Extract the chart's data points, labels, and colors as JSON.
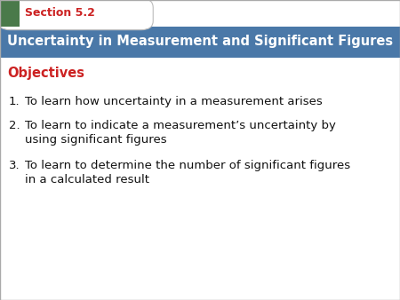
{
  "section_label": "Section 5.2",
  "title": "Uncertainty in Measurement and Significant Figures",
  "objectives_label": "Objectives",
  "items": [
    "To learn how uncertainty in a measurement arises",
    "To learn to indicate a measurement’s uncertainty by\nusing significant figures",
    "To learn to determine the number of significant figures\nin a calculated result"
  ],
  "header_bg_color": "#4a78a8",
  "header_text_color": "#ffffff",
  "section_tab_bg": "#ffffff",
  "section_label_color": "#cc2222",
  "objectives_color": "#cc2222",
  "green_square_color": "#4a7a4a",
  "body_bg_color": "#ffffff",
  "item_text_color": "#111111",
  "title_fontsize": 10.5,
  "section_fontsize": 9.0,
  "objectives_fontsize": 10.5,
  "item_fontsize": 9.5
}
